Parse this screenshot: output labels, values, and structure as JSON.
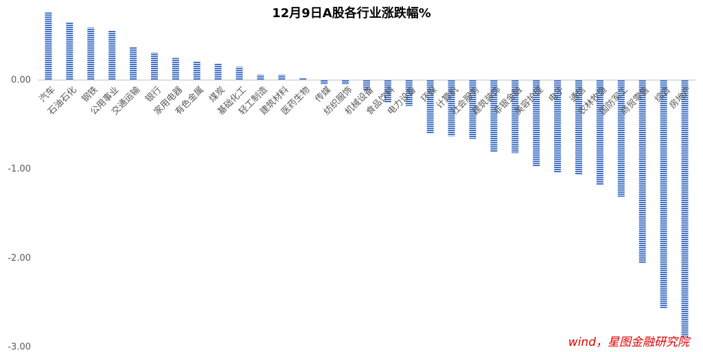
{
  "chart_data": {
    "type": "bar",
    "title": "12月9日A股各行业涨跌幅%",
    "categories": [
      "汽车",
      "石油石化",
      "钢铁",
      "公用事业",
      "交通运输",
      "银行",
      "家用电器",
      "有色金属",
      "煤炭",
      "基础化工",
      "轻工制造",
      "建筑材料",
      "医药生物",
      "传媒",
      "纺织服饰",
      "机械设备",
      "食品饮料",
      "电力设备",
      "环保",
      "计算机",
      "社会服务",
      "建筑装饰",
      "非银金融",
      "美容护理",
      "电子",
      "通信",
      "农林牧渔",
      "国防军工",
      "商贸零售",
      "综合",
      "房地产"
    ],
    "values": [
      0.76,
      0.65,
      0.59,
      0.56,
      0.37,
      0.31,
      0.25,
      0.21,
      0.19,
      0.15,
      0.06,
      0.06,
      0.02,
      -0.05,
      -0.05,
      -0.12,
      -0.25,
      -0.29,
      -0.6,
      -0.63,
      -0.66,
      -0.81,
      -0.82,
      -0.97,
      -1.04,
      -1.06,
      -1.18,
      -1.31,
      -2.06,
      -2.56,
      -2.88
    ],
    "color": "#4472c4",
    "ylim": [
      -3,
      0.8
    ],
    "yticks": [
      {
        "value": -3,
        "label": "-3.00"
      },
      {
        "value": -2,
        "label": "-2.00"
      },
      {
        "value": -1,
        "label": "-1.00"
      },
      {
        "value": 0,
        "label": "0.00"
      }
    ],
    "grid": false,
    "annotation": "wind，星图金融研究院"
  }
}
